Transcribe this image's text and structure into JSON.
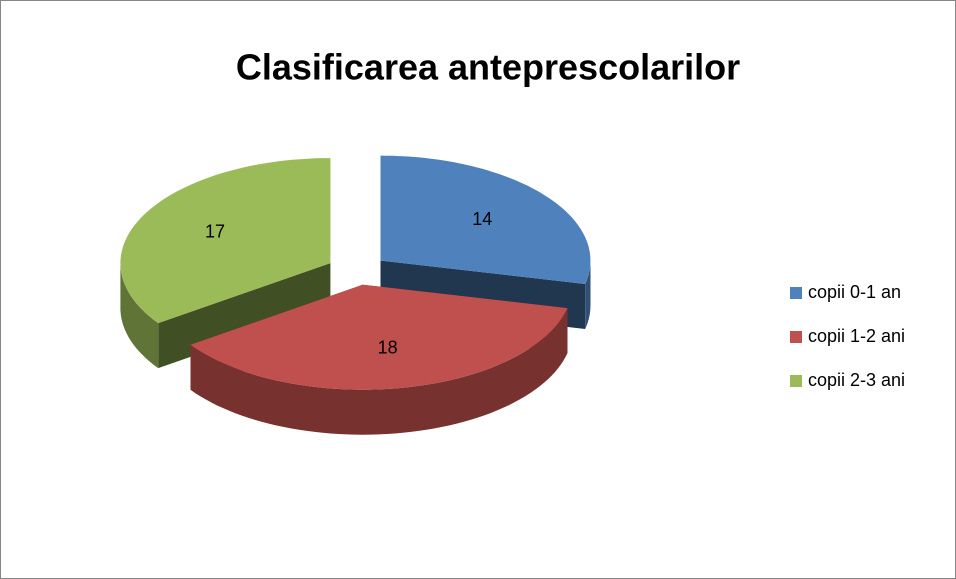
{
  "chart_data": {
    "type": "pie",
    "title": "Clasificarea anteprescolarilor",
    "categories": [
      "copii 0-1 an",
      "copii 1-2 ani",
      "copii 2-3 ani"
    ],
    "values": [
      14,
      18,
      17
    ],
    "colors": [
      "#4f81bd",
      "#c0504d",
      "#9bbb59"
    ],
    "legend": "right"
  }
}
